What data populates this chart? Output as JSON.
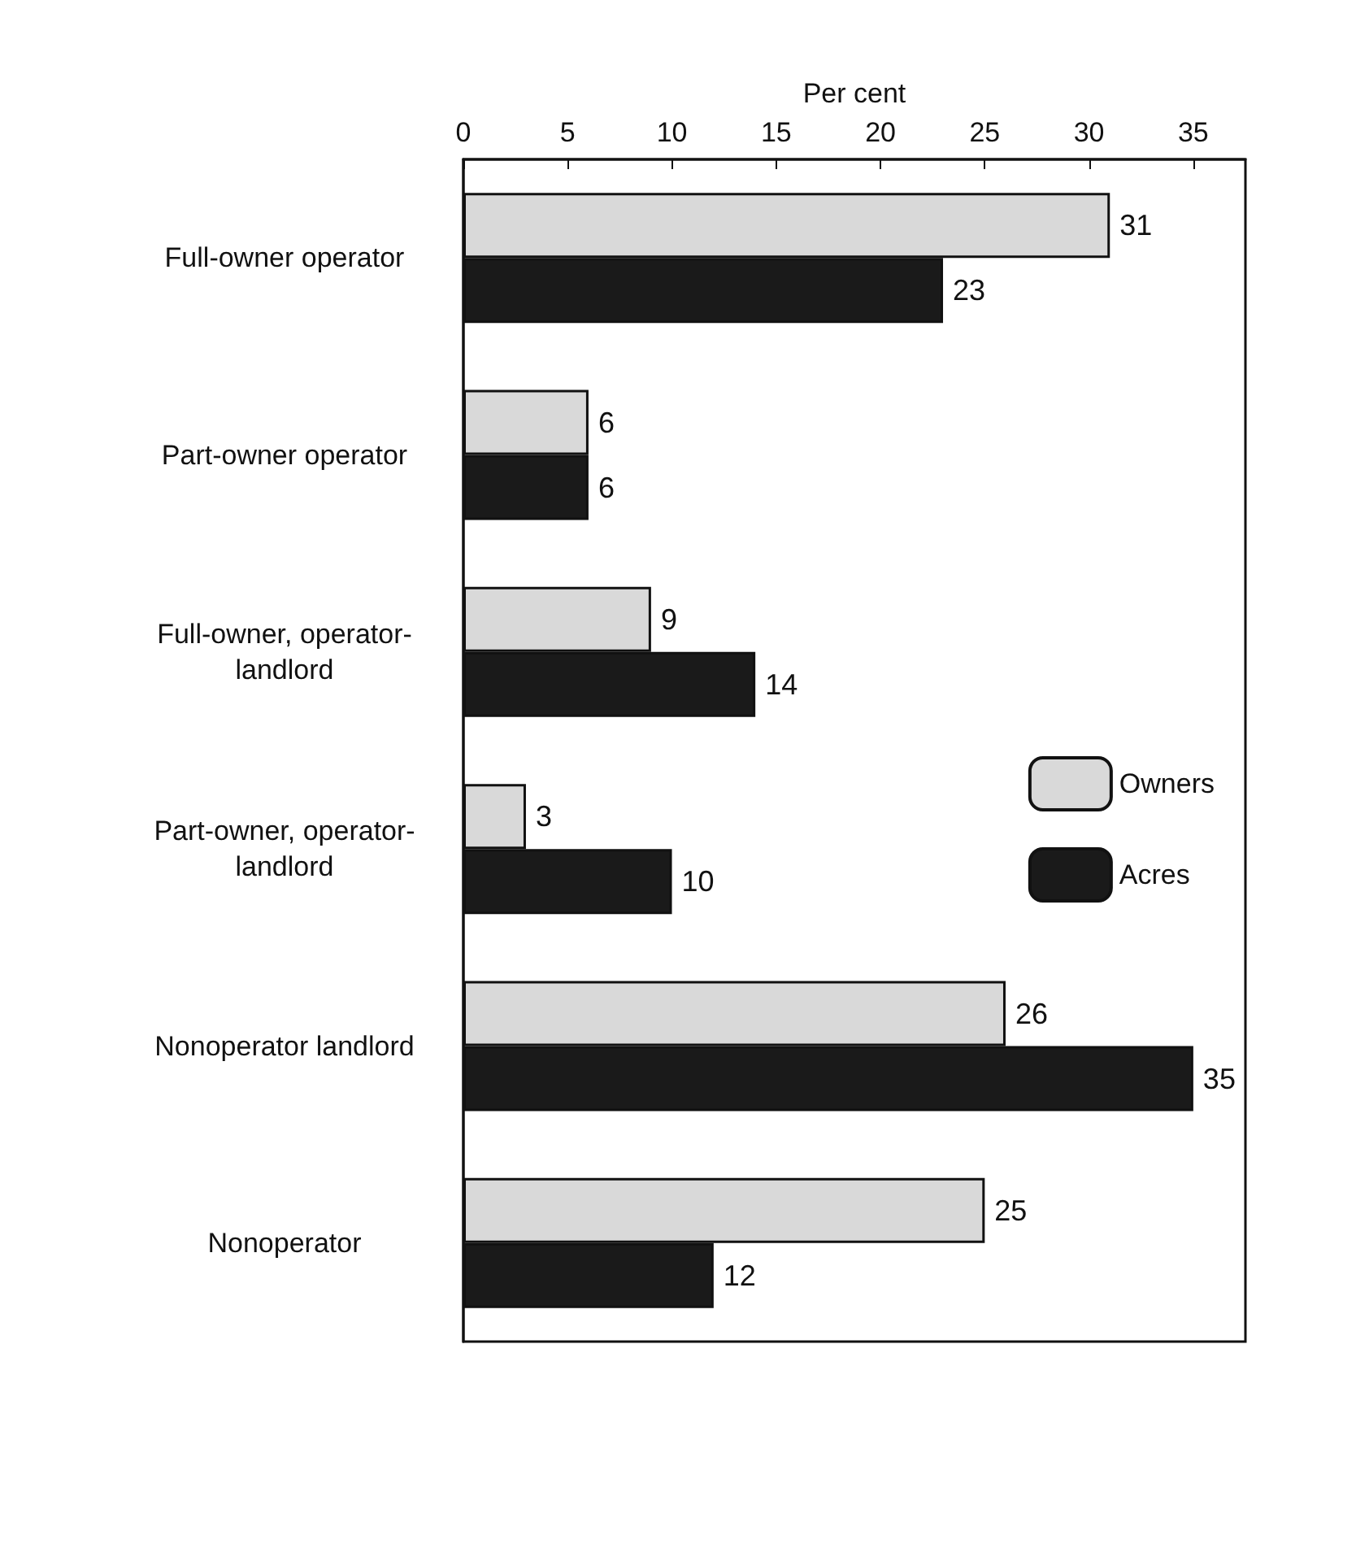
{
  "chart_data": {
    "type": "bar",
    "orientation": "horizontal",
    "xlabel": "Per cent",
    "categories": [
      "Full-owner operator",
      "Part-owner operator",
      "Full-owner, operator-landlord",
      "Part-owner, operator-landlord",
      "Nonoperator landlord",
      "Nonoperator"
    ],
    "series": [
      {
        "name": "Owners",
        "color": "#d9d9d9",
        "values": [
          31,
          6,
          9,
          3,
          26,
          25
        ]
      },
      {
        "name": "Acres",
        "color": "#1a1a1a",
        "values": [
          23,
          6,
          14,
          10,
          35,
          12
        ]
      }
    ],
    "xlim": [
      0,
      37.5
    ],
    "xticks": [
      0,
      5,
      10,
      15,
      20,
      25,
      30,
      35
    ],
    "data_labels": true,
    "legend": "right",
    "grid": false
  }
}
